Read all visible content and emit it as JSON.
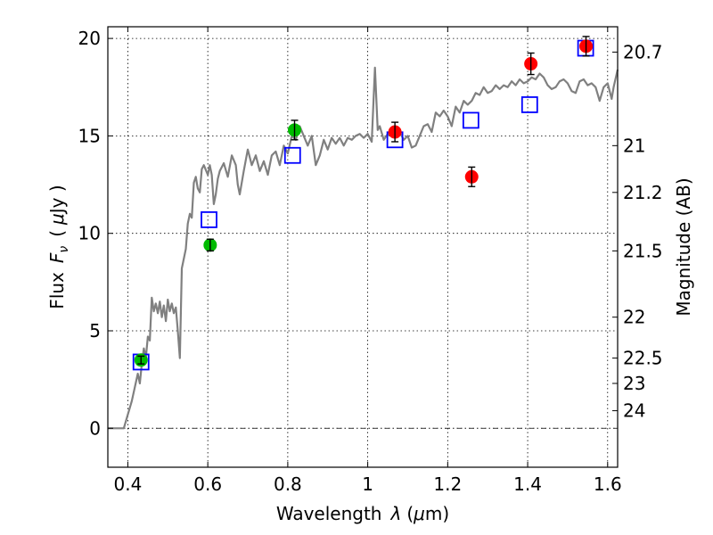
{
  "chart_data": {
    "type": "scatter",
    "title": "",
    "xlabel": "Wavelength",
    "xlabel_symbol": "λ",
    "xlabel_unit_prefix": "(",
    "xlabel_unit_mu": "μ",
    "xlabel_unit_suffix": "m)",
    "ylabel": "Flux",
    "ylabel_symbol": "F",
    "ylabel_symbol_sub": "ν",
    "ylabel_unit_prefix": "(",
    "ylabel_unit_mu": "μ",
    "ylabel_unit_suffix": "Jy )",
    "y2label": "Magnitude (AB)",
    "xlim": [
      0.35,
      1.625
    ],
    "ylim": [
      -2,
      20.6
    ],
    "grid": true,
    "x_ticks": [
      {
        "value": 0.4,
        "label": "0.4"
      },
      {
        "value": 0.6,
        "label": "0.6"
      },
      {
        "value": 0.8,
        "label": "0.8"
      },
      {
        "value": 1.0,
        "label": "1"
      },
      {
        "value": 1.2,
        "label": "1.2"
      },
      {
        "value": 1.4,
        "label": "1.4"
      },
      {
        "value": 1.6,
        "label": "1.6"
      }
    ],
    "y_ticks": [
      {
        "value": 0,
        "label": "0"
      },
      {
        "value": 5,
        "label": "5"
      },
      {
        "value": 10,
        "label": "10"
      },
      {
        "value": 15,
        "label": "15"
      },
      {
        "value": 20,
        "label": "20"
      }
    ],
    "magnitude_ticks": [
      {
        "label": "20.7",
        "flux": 19.3
      },
      {
        "label": "21",
        "flux": 14.5
      },
      {
        "label": "21.2",
        "flux": 12.1
      },
      {
        "label": "21.5",
        "flux": 9.1
      },
      {
        "label": "22",
        "flux": 5.7
      },
      {
        "label": "22.5",
        "flux": 3.6
      },
      {
        "label": "23",
        "flux": 2.3
      },
      {
        "label": "24",
        "flux": 0.9
      }
    ],
    "zero_line": {
      "value": 0,
      "color": "#000000"
    },
    "series": [
      {
        "kind": "line",
        "color": "#808080",
        "points": [
          [
            0.35,
            0
          ],
          [
            0.39,
            0
          ],
          [
            0.41,
            1.4
          ],
          [
            0.425,
            2.8
          ],
          [
            0.43,
            2.3
          ],
          [
            0.435,
            3.3
          ],
          [
            0.44,
            4.1
          ],
          [
            0.445,
            3.6
          ],
          [
            0.45,
            4.7
          ],
          [
            0.455,
            4.5
          ],
          [
            0.46,
            6.7
          ],
          [
            0.465,
            6.0
          ],
          [
            0.47,
            6.4
          ],
          [
            0.475,
            5.9
          ],
          [
            0.48,
            6.5
          ],
          [
            0.485,
            5.7
          ],
          [
            0.49,
            6.3
          ],
          [
            0.495,
            5.5
          ],
          [
            0.5,
            6.6
          ],
          [
            0.505,
            6.0
          ],
          [
            0.51,
            6.4
          ],
          [
            0.515,
            5.9
          ],
          [
            0.52,
            6.2
          ],
          [
            0.525,
            5.0
          ],
          [
            0.53,
            3.6
          ],
          [
            0.535,
            8.2
          ],
          [
            0.545,
            9.2
          ],
          [
            0.55,
            10.5
          ],
          [
            0.555,
            11.0
          ],
          [
            0.56,
            10.8
          ],
          [
            0.565,
            12.6
          ],
          [
            0.57,
            12.9
          ],
          [
            0.575,
            12.3
          ],
          [
            0.58,
            12.1
          ],
          [
            0.585,
            13.3
          ],
          [
            0.59,
            13.5
          ],
          [
            0.6,
            13.0
          ],
          [
            0.605,
            13.5
          ],
          [
            0.61,
            13.0
          ],
          [
            0.615,
            11.5
          ],
          [
            0.62,
            12.0
          ],
          [
            0.625,
            12.8
          ],
          [
            0.63,
            13.2
          ],
          [
            0.64,
            13.6
          ],
          [
            0.65,
            12.9
          ],
          [
            0.66,
            14.0
          ],
          [
            0.67,
            13.5
          ],
          [
            0.675,
            12.5
          ],
          [
            0.68,
            12.0
          ],
          [
            0.69,
            13.2
          ],
          [
            0.7,
            14.3
          ],
          [
            0.71,
            13.5
          ],
          [
            0.72,
            14.0
          ],
          [
            0.73,
            13.2
          ],
          [
            0.74,
            13.7
          ],
          [
            0.75,
            13.0
          ],
          [
            0.76,
            14.0
          ],
          [
            0.77,
            14.2
          ],
          [
            0.78,
            13.5
          ],
          [
            0.79,
            14.5
          ],
          [
            0.8,
            14.1
          ],
          [
            0.81,
            15.0
          ],
          [
            0.82,
            14.8
          ],
          [
            0.83,
            15.5
          ],
          [
            0.84,
            15.0
          ],
          [
            0.85,
            14.5
          ],
          [
            0.86,
            15.0
          ],
          [
            0.87,
            13.5
          ],
          [
            0.88,
            14.0
          ],
          [
            0.89,
            14.8
          ],
          [
            0.9,
            14.3
          ],
          [
            0.91,
            14.9
          ],
          [
            0.92,
            14.6
          ],
          [
            0.93,
            14.9
          ],
          [
            0.94,
            14.5
          ],
          [
            0.95,
            14.9
          ],
          [
            0.96,
            14.8
          ],
          [
            0.97,
            15.0
          ],
          [
            0.98,
            15.1
          ],
          [
            0.99,
            14.9
          ],
          [
            1.0,
            15.1
          ],
          [
            1.01,
            14.7
          ],
          [
            1.018,
            18.5
          ],
          [
            1.025,
            15.3
          ],
          [
            1.03,
            15.5
          ],
          [
            1.04,
            14.8
          ],
          [
            1.05,
            15.1
          ],
          [
            1.06,
            15.0
          ],
          [
            1.07,
            15.0
          ],
          [
            1.08,
            15.2
          ],
          [
            1.09,
            14.8
          ],
          [
            1.1,
            15.0
          ],
          [
            1.11,
            14.4
          ],
          [
            1.12,
            14.5
          ],
          [
            1.13,
            15.0
          ],
          [
            1.14,
            15.5
          ],
          [
            1.15,
            15.6
          ],
          [
            1.16,
            15.2
          ],
          [
            1.17,
            16.2
          ],
          [
            1.18,
            16.0
          ],
          [
            1.19,
            16.3
          ],
          [
            1.2,
            16.0
          ],
          [
            1.21,
            15.5
          ],
          [
            1.22,
            16.5
          ],
          [
            1.23,
            16.2
          ],
          [
            1.24,
            16.8
          ],
          [
            1.25,
            16.6
          ],
          [
            1.26,
            16.8
          ],
          [
            1.27,
            17.2
          ],
          [
            1.28,
            17.1
          ],
          [
            1.29,
            17.5
          ],
          [
            1.3,
            17.2
          ],
          [
            1.31,
            17.3
          ],
          [
            1.32,
            17.6
          ],
          [
            1.33,
            17.4
          ],
          [
            1.34,
            17.6
          ],
          [
            1.35,
            17.5
          ],
          [
            1.36,
            17.8
          ],
          [
            1.37,
            17.6
          ],
          [
            1.38,
            17.9
          ],
          [
            1.39,
            17.7
          ],
          [
            1.4,
            17.8
          ],
          [
            1.41,
            18.0
          ],
          [
            1.42,
            17.9
          ],
          [
            1.43,
            18.2
          ],
          [
            1.44,
            18.0
          ],
          [
            1.45,
            17.6
          ],
          [
            1.46,
            17.4
          ],
          [
            1.47,
            17.5
          ],
          [
            1.48,
            17.8
          ],
          [
            1.49,
            17.9
          ],
          [
            1.5,
            17.7
          ],
          [
            1.51,
            17.3
          ],
          [
            1.52,
            17.2
          ],
          [
            1.53,
            17.8
          ],
          [
            1.54,
            17.9
          ],
          [
            1.55,
            17.6
          ],
          [
            1.56,
            17.7
          ],
          [
            1.57,
            17.5
          ],
          [
            1.58,
            16.8
          ],
          [
            1.59,
            17.5
          ],
          [
            1.6,
            17.7
          ],
          [
            1.61,
            16.9
          ],
          [
            1.615,
            17.5
          ],
          [
            1.625,
            18.4
          ]
        ]
      },
      {
        "kind": "scatter",
        "marker": "square",
        "color": "#0000ff",
        "points": [
          {
            "x": 0.433,
            "y": 3.4
          },
          {
            "x": 0.603,
            "y": 10.7
          },
          {
            "x": 0.812,
            "y": 14.0
          },
          {
            "x": 1.068,
            "y": 14.8
          },
          {
            "x": 1.258,
            "y": 15.8
          },
          {
            "x": 1.405,
            "y": 16.6
          },
          {
            "x": 1.545,
            "y": 19.5
          }
        ]
      },
      {
        "kind": "errorbar",
        "marker": "circle",
        "color": "#00bb00",
        "points": [
          {
            "x": 0.433,
            "y": 3.5,
            "err": 0.2
          },
          {
            "x": 0.606,
            "y": 9.4,
            "err": 0.3
          },
          {
            "x": 0.817,
            "y": 15.3,
            "err": 0.5
          }
        ]
      },
      {
        "kind": "errorbar",
        "marker": "circle",
        "color": "#ff0000",
        "points": [
          {
            "x": 1.068,
            "y": 15.2,
            "err": 0.5
          },
          {
            "x": 1.26,
            "y": 12.9,
            "err": 0.5
          },
          {
            "x": 1.408,
            "y": 18.7,
            "err": 0.55
          },
          {
            "x": 1.546,
            "y": 19.6,
            "err": 0.5
          }
        ]
      }
    ]
  }
}
